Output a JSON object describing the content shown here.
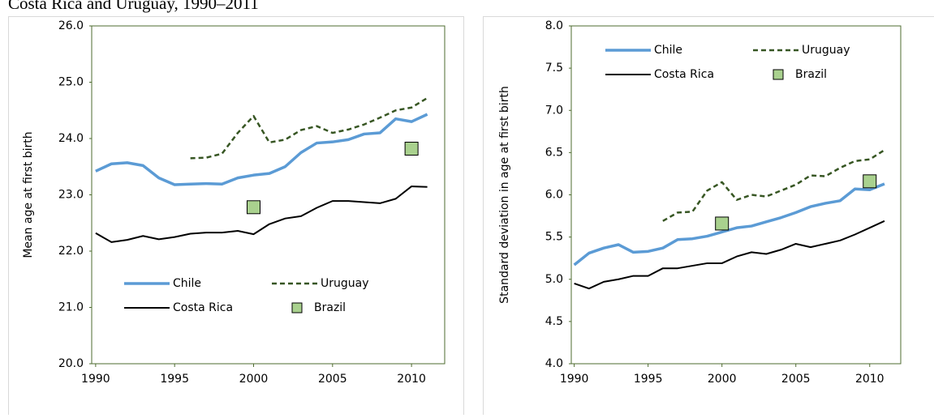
{
  "title": "Costa Rica and Uruguay, 1990–2011",
  "chart_data": [
    {
      "type": "line",
      "y_label": "Mean age at first birth",
      "legend": "lower",
      "x": [
        1990,
        1991,
        1992,
        1993,
        1994,
        1995,
        1996,
        1997,
        1998,
        1999,
        2000,
        2001,
        2002,
        2003,
        2004,
        2005,
        2006,
        2007,
        2008,
        2009,
        2010,
        2011
      ],
      "xlim": [
        1989.75,
        2012.1
      ],
      "xticks": [
        1990,
        1995,
        2000,
        2005,
        2010
      ],
      "ylim": [
        20,
        26
      ],
      "yticks": [
        {
          "value": 20,
          "label": "20.0"
        },
        {
          "value": 21,
          "label": "21.0"
        },
        {
          "value": 22,
          "label": "22.0"
        },
        {
          "value": 23,
          "label": "23.0"
        },
        {
          "value": 24,
          "label": "24.0"
        },
        {
          "value": 25,
          "label": "25.0"
        },
        {
          "value": 26,
          "label": "26.0"
        }
      ],
      "series": [
        {
          "name": "Chile",
          "color": "#5b9bd5",
          "style": "solid",
          "values": [
            23.42,
            23.55,
            23.57,
            23.52,
            23.3,
            23.18,
            23.19,
            23.2,
            23.19,
            23.3,
            23.35,
            23.38,
            23.5,
            23.75,
            23.92,
            23.94,
            23.98,
            24.08,
            24.1,
            24.35,
            24.3,
            24.43
          ]
        },
        {
          "name": "Uruguay",
          "color": "#375623",
          "style": "dashed",
          "values": [
            null,
            null,
            null,
            null,
            null,
            null,
            23.65,
            23.66,
            23.73,
            24.1,
            24.4,
            23.93,
            23.98,
            24.15,
            24.22,
            24.1,
            24.16,
            24.25,
            24.37,
            24.5,
            24.55,
            24.72
          ]
        },
        {
          "name": "Costa Rica",
          "color": "#000000",
          "style": "solid",
          "values": [
            22.32,
            22.16,
            22.2,
            22.27,
            22.21,
            22.25,
            22.31,
            22.33,
            22.33,
            22.36,
            22.3,
            22.48,
            22.58,
            22.62,
            22.77,
            22.89,
            22.89,
            22.87,
            22.85,
            22.93,
            23.15,
            23.14
          ]
        },
        {
          "name": "Brazil",
          "color": "#a9d18e",
          "style": "marker",
          "values": [
            null,
            null,
            null,
            null,
            null,
            null,
            null,
            null,
            null,
            null,
            22.78,
            null,
            null,
            null,
            null,
            null,
            null,
            null,
            null,
            null,
            23.82,
            null
          ]
        }
      ]
    },
    {
      "type": "line",
      "y_label": "Standard deviation in age at first birth",
      "legend": "upper",
      "x": [
        1990,
        1991,
        1992,
        1993,
        1994,
        1995,
        1996,
        1997,
        1998,
        1999,
        2000,
        2001,
        2002,
        2003,
        2004,
        2005,
        2006,
        2007,
        2008,
        2009,
        2010,
        2011
      ],
      "xlim": [
        1989.8,
        2012.1
      ],
      "xticks": [
        1990,
        1995,
        2000,
        2005,
        2010
      ],
      "ylim": [
        4,
        8
      ],
      "yticks": [
        {
          "value": 4,
          "label": "4.0"
        },
        {
          "value": 4.5,
          "label": "4.5"
        },
        {
          "value": 5,
          "label": "5.0"
        },
        {
          "value": 5.5,
          "label": "5.5"
        },
        {
          "value": 6,
          "label": "6.0"
        },
        {
          "value": 6.5,
          "label": "6.5"
        },
        {
          "value": 7,
          "label": "7.0"
        },
        {
          "value": 7.5,
          "label": "7.5"
        },
        {
          "value": 8,
          "label": "8.0"
        }
      ],
      "series": [
        {
          "name": "Chile",
          "color": "#5b9bd5",
          "style": "solid",
          "values": [
            5.17,
            5.31,
            5.37,
            5.41,
            5.32,
            5.33,
            5.37,
            5.47,
            5.48,
            5.51,
            5.56,
            5.61,
            5.63,
            5.68,
            5.73,
            5.79,
            5.86,
            5.9,
            5.93,
            6.07,
            6.06,
            6.13
          ]
        },
        {
          "name": "Uruguay",
          "color": "#375623",
          "style": "dashed",
          "values": [
            null,
            null,
            null,
            null,
            null,
            null,
            5.69,
            5.79,
            5.8,
            6.05,
            6.15,
            5.94,
            6.0,
            5.98,
            6.05,
            6.12,
            6.23,
            6.22,
            6.32,
            6.4,
            6.42,
            6.53
          ]
        },
        {
          "name": "Costa Rica",
          "color": "#000000",
          "style": "solid",
          "values": [
            4.95,
            4.89,
            4.97,
            5.0,
            5.04,
            5.04,
            5.13,
            5.13,
            5.16,
            5.19,
            5.19,
            5.27,
            5.32,
            5.3,
            5.35,
            5.42,
            5.38,
            5.42,
            5.46,
            5.53,
            5.61,
            5.69
          ]
        },
        {
          "name": "Brazil",
          "color": "#a9d18e",
          "style": "marker",
          "values": [
            null,
            null,
            null,
            null,
            null,
            null,
            null,
            null,
            null,
            null,
            5.66,
            null,
            null,
            null,
            null,
            null,
            null,
            null,
            null,
            null,
            6.16,
            null
          ]
        }
      ]
    }
  ]
}
